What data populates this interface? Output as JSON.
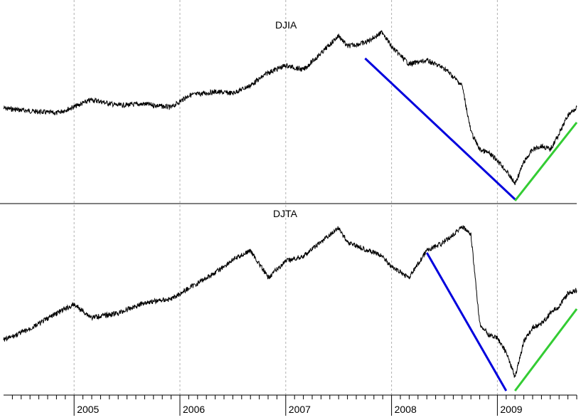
{
  "chart_data": [
    {
      "type": "line",
      "title": "DJIA",
      "xlabel": "",
      "ylabel": "",
      "x_range": [
        "2004-05",
        "2009-10"
      ],
      "grid": "vertical dashed at year boundaries",
      "y_axis": "unlabeled",
      "series": [
        {
          "color": "#000000",
          "x": [
            "2004-05",
            "2004-08",
            "2004-11",
            "2005-01",
            "2005-03",
            "2005-06",
            "2005-09",
            "2005-12",
            "2006-02",
            "2006-05",
            "2006-07",
            "2006-09",
            "2006-11",
            "2007-01",
            "2007-03",
            "2007-05",
            "2007-07",
            "2007-08",
            "2007-10",
            "2007-12",
            "2008-01",
            "2008-03",
            "2008-05",
            "2008-07",
            "2008-09",
            "2008-10",
            "2008-11",
            "2008-12",
            "2009-01",
            "2009-02",
            "2009-03",
            "2009-04",
            "2009-05",
            "2009-06",
            "2009-07",
            "2009-08",
            "2009-09",
            "2009-10"
          ],
          "values": [
            152,
            156,
            159,
            150,
            140,
            148,
            146,
            151,
            134,
            129,
            131,
            120,
            102,
            92,
            98,
            75,
            50,
            65,
            60,
            45,
            66,
            90,
            85,
            96,
            120,
            185,
            210,
            215,
            225,
            240,
            258,
            228,
            210,
            205,
            210,
            188,
            162,
            150
          ]
        }
      ],
      "annotations": [
        {
          "type": "trendline",
          "color": "#0000dd",
          "from": [
            "2007-10",
            82
          ],
          "to": [
            "2009-03",
            280
          ]
        },
        {
          "type": "trendline",
          "color": "#33cc33",
          "from": [
            "2009-03",
            282
          ],
          "to": [
            "2009-10",
            172
          ]
        }
      ]
    },
    {
      "type": "line",
      "title": "DJTA",
      "xlabel": "",
      "ylabel": "",
      "x_range": [
        "2004-05",
        "2009-10"
      ],
      "grid": "vertical dashed at year boundaries",
      "y_axis": "unlabeled",
      "x_tick_labels": [
        "2005",
        "2006",
        "2007",
        "2008",
        "2009"
      ],
      "series": [
        {
          "color": "#000000",
          "x": [
            "2004-05",
            "2004-08",
            "2004-11",
            "2005-01",
            "2005-03",
            "2005-06",
            "2005-09",
            "2005-12",
            "2006-02",
            "2006-05",
            "2006-07",
            "2006-09",
            "2006-11",
            "2007-01",
            "2007-03",
            "2007-05",
            "2007-07",
            "2007-08",
            "2007-10",
            "2007-12",
            "2008-01",
            "2008-03",
            "2008-05",
            "2008-07",
            "2008-09",
            "2008-10",
            "2008-11",
            "2008-12",
            "2009-01",
            "2009-02",
            "2009-03",
            "2009-04",
            "2009-05",
            "2009-06",
            "2009-07",
            "2009-08",
            "2009-09",
            "2009-10"
          ],
          "values": [
            478,
            462,
            440,
            428,
            446,
            440,
            425,
            420,
            405,
            383,
            365,
            352,
            390,
            367,
            360,
            340,
            320,
            340,
            350,
            360,
            375,
            390,
            352,
            340,
            318,
            330,
            455,
            470,
            475,
            495,
            530,
            480,
            460,
            455,
            440,
            430,
            412,
            408
          ]
        }
      ],
      "annotations": [
        {
          "type": "trendline",
          "color": "#0000dd",
          "from": [
            "2008-05",
            355
          ],
          "to": [
            "2009-02",
            549
          ]
        },
        {
          "type": "trendline",
          "color": "#33cc33",
          "from": [
            "2009-03",
            549
          ],
          "to": [
            "2009-10",
            434
          ]
        }
      ]
    }
  ]
}
